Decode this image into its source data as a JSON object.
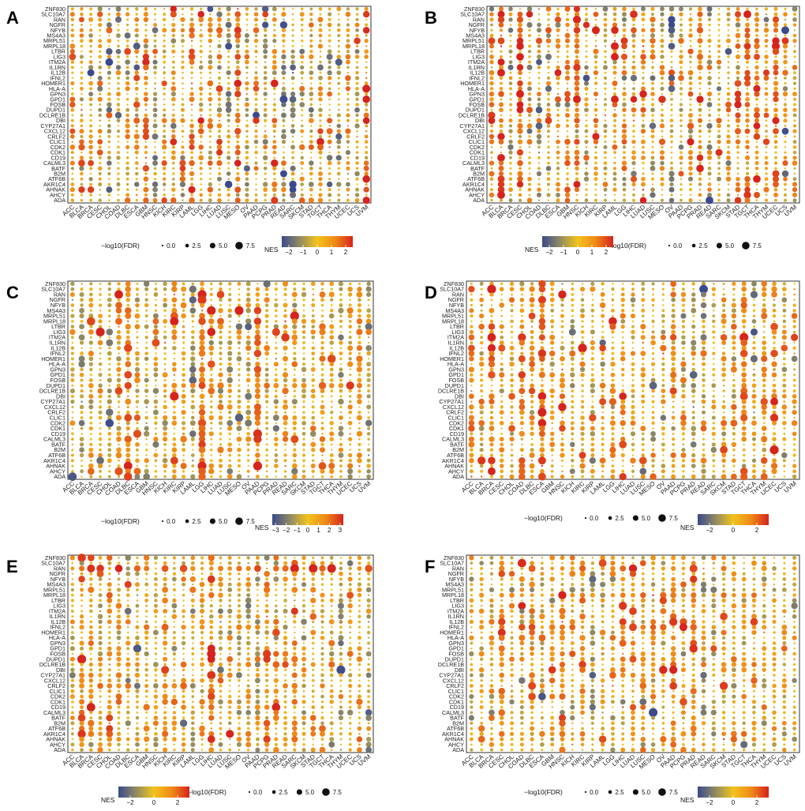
{
  "figure": {
    "fdr_legend_title": "−log10(FDR)",
    "fdr_legend_values": [
      "0.0",
      "2.5",
      "5.0",
      "7.5"
    ],
    "nes_legend_title": "NES",
    "colors": {
      "low": "#3b4a8c",
      "mid_low": "#8f8a63",
      "mid": "#f2c31c",
      "mid_high": "#f08a17",
      "high": "#d6231c",
      "frame": "#333333"
    }
  },
  "chart_data": [
    {
      "panel": "A",
      "type": "scatter",
      "style": "dot-plot",
      "genes": [
        "ZNF830",
        "SLC10A7",
        "RAN",
        "NGFR",
        "NFYB",
        "MS4A3",
        "MRPL51",
        "MRPL18",
        "LTBR",
        "LIG3",
        "ITM2A",
        "IL1RN",
        "IL12B",
        "IFNL2",
        "HOMER1",
        "HLA-A",
        "GPN3",
        "GPD1",
        "FOSB",
        "DUPD1",
        "DCLRE1B",
        "DBI",
        "CYP27A1",
        "CXCL12",
        "CRLF2",
        "CLIC1",
        "CDK2",
        "CDK1",
        "CD19",
        "CALML3",
        "BATF",
        "B2M",
        "ATF6B",
        "AKR1C4",
        "AHNAK",
        "AHCY",
        "ADA"
      ],
      "cancers": [
        "ACC",
        "BLCA",
        "BRCA",
        "CESC",
        "CHOL",
        "COAD",
        "DLBC",
        "ESCA",
        "GBM",
        "HNSC",
        "KICH",
        "KIRC",
        "KIRP",
        "LAML",
        "LGG",
        "LIHC",
        "LUAD",
        "LUSC",
        "MESO",
        "OV",
        "PAAD",
        "PCPG",
        "PRAD",
        "READ",
        "SARC",
        "SKCM",
        "STAD",
        "TGCT",
        "THCA",
        "THYM",
        "UCEC",
        "UCS",
        "UVM"
      ],
      "size_variable": "−log10(FDR)",
      "color_variable": "NES",
      "nes_range": [
        -2.5,
        2.5
      ],
      "nes_ticks": [
        "−2",
        "−1",
        "0",
        "1",
        "2"
      ],
      "seed": 11
    },
    {
      "panel": "B",
      "type": "scatter",
      "style": "dot-plot",
      "genes": [
        "ZNF830",
        "SLC10A7",
        "RAN",
        "NGFR",
        "NFYB",
        "MS4A3",
        "MRPL51",
        "MRPL18",
        "LTBR",
        "LIG3",
        "ITM2A",
        "IL1RN",
        "IL12B",
        "IFNL2",
        "HOMER1",
        "HLA-A",
        "GPN3",
        "GPD1",
        "FOSB",
        "DUPD1",
        "DCLRE1B",
        "DBI",
        "CYP27A1",
        "CXCL12",
        "CRLF2",
        "CLIC1",
        "CDK2",
        "CDK1",
        "CD19",
        "CALML3",
        "BATF",
        "B2M",
        "ATF6B",
        "AKR1C4",
        "AHNAK",
        "AHCY",
        "ADA"
      ],
      "cancers": [
        "ACC",
        "BLCA",
        "BRCA",
        "CESC",
        "CHOL",
        "COAD",
        "DLBC",
        "ESCA",
        "GBM",
        "HNSC",
        "KICH",
        "KIRC",
        "KIRP",
        "LAML",
        "LGG",
        "LIHC",
        "LUAD",
        "LUSC",
        "MESO",
        "OV",
        "PAAD",
        "PCPG",
        "PRAD",
        "READ",
        "SARC",
        "SKCM",
        "STAD",
        "TGCT",
        "THCA",
        "THYM",
        "UCEC",
        "UCS",
        "UVM"
      ],
      "size_variable": "−log10(FDR)",
      "color_variable": "NES",
      "nes_range": [
        -2.5,
        2.5
      ],
      "nes_ticks": [
        "−2",
        "−1",
        "0",
        "1",
        "2"
      ],
      "seed": 23
    },
    {
      "panel": "C",
      "type": "scatter",
      "style": "dot-plot",
      "genes": [
        "ZNF830",
        "SLC10A7",
        "RAN",
        "NGFR",
        "NFYB",
        "MS4A3",
        "MRPL51",
        "MRPL18",
        "LTBR",
        "LIG3",
        "ITM2A",
        "IL1RN",
        "IL12B",
        "IFNL2",
        "HOMER1",
        "HLA-A",
        "GPN3",
        "GPD1",
        "FOSB",
        "DUPD1",
        "DCLRE1B",
        "DBI",
        "CYP27A1",
        "CXCL12",
        "CRLF2",
        "CLIC1",
        "CDK2",
        "CDK1",
        "CD19",
        "CALML3",
        "BATF",
        "B2M",
        "ATF6B",
        "AKR1C4",
        "AHNAK",
        "AHCY",
        "ADA"
      ],
      "cancers": [
        "ACC",
        "BLCA",
        "BRCA",
        "CESC",
        "CHOL",
        "COAD",
        "DLBC",
        "ESCA",
        "GBM",
        "HNSC",
        "KICH",
        "KIRC",
        "KIRP",
        "LAML",
        "LGG",
        "LIHC",
        "LUAD",
        "LUSC",
        "MESO",
        "OV",
        "PAAD",
        "PCPG",
        "PRAD",
        "READ",
        "SARC",
        "SKCM",
        "STAD",
        "TGCT",
        "THCA",
        "THYM",
        "UCEC",
        "UCS",
        "UVM"
      ],
      "size_variable": "−log10(FDR)",
      "color_variable": "NES",
      "nes_range": [
        -3.3,
        3.3
      ],
      "nes_ticks": [
        "−3",
        "−2",
        "−1",
        "0",
        "1",
        "2",
        "3"
      ],
      "seed": 37
    },
    {
      "panel": "D",
      "type": "scatter",
      "style": "dot-plot",
      "genes": [
        "ZNF830",
        "SLC10A7",
        "RAN",
        "NGFR",
        "NFYB",
        "MS4A3",
        "MRPL51",
        "MRPL18",
        "LTBR",
        "LIG3",
        "ITM2A",
        "IL1RN",
        "IL12B",
        "IFNL2",
        "HOMER1",
        "HLA-A",
        "GPN3",
        "GPD1",
        "FOSB",
        "DUPD1",
        "DCLRE1B",
        "DBI",
        "CYP27A1",
        "CXCL12",
        "CRLF2",
        "CLIC1",
        "CDK2",
        "CDK1",
        "CD19",
        "CALML3",
        "BATF",
        "B2M",
        "ATF6B",
        "AKR1C4",
        "AHNAK",
        "AHCY",
        "ADA"
      ],
      "cancers": [
        "ACC",
        "BLCA",
        "BRCA",
        "CESC",
        "CHOL",
        "COAD",
        "DLBC",
        "ESCA",
        "GBM",
        "HNSC",
        "KICH",
        "KIRC",
        "KIRP",
        "LAML",
        "LGG",
        "LIHC",
        "LUAD",
        "LUSC",
        "MESO",
        "OV",
        "PAAD",
        "PCPG",
        "PRAD",
        "READ",
        "SARC",
        "SKCM",
        "STAD",
        "TGCT",
        "THCA",
        "THYM",
        "UCEC",
        "UCS",
        "UVM"
      ],
      "size_variable": "−log10(FDR)",
      "color_variable": "NES",
      "nes_range": [
        -3.0,
        3.0
      ],
      "nes_ticks": [
        "−2",
        "0",
        "2"
      ],
      "seed": 51
    },
    {
      "panel": "E",
      "type": "scatter",
      "style": "dot-plot",
      "genes": [
        "ZNF830",
        "SLC10A7",
        "RAN",
        "NGFR",
        "NFYB",
        "MS4A3",
        "MRPL51",
        "MRPL18",
        "LTBR",
        "LIG3",
        "ITM2A",
        "IL1RN",
        "IL12B",
        "IFNL2",
        "HOMER1",
        "HLA-A",
        "GPN3",
        "GPD1",
        "FOSB",
        "DUPD1",
        "DCLRE1B",
        "DBI",
        "CYP27A1",
        "CXCL12",
        "CRLF2",
        "CLIC1",
        "CDK2",
        "CDK1",
        "CD19",
        "CALML3",
        "BATF",
        "B2M",
        "ATF6B",
        "AKR1C4",
        "AHNAK",
        "AHCY",
        "ADA"
      ],
      "cancers": [
        "ACC",
        "BLCA",
        "BRCA",
        "CESC",
        "CHOL",
        "COAD",
        "DLBC",
        "ESCA",
        "GBM",
        "HNSC",
        "KICH",
        "KIRC",
        "KIRP",
        "LAML",
        "LGG",
        "LIHC",
        "LUAD",
        "LUSC",
        "MESO",
        "OV",
        "PAAD",
        "PCPG",
        "PRAD",
        "READ",
        "SARC",
        "SKCM",
        "STAD",
        "TGCT",
        "THCA",
        "THYM",
        "UCEC",
        "UCS",
        "UVM"
      ],
      "size_variable": "−log10(FDR)",
      "color_variable": "NES",
      "nes_range": [
        -3.0,
        3.0
      ],
      "nes_ticks": [
        "−2",
        "0",
        "2"
      ],
      "seed": 67
    },
    {
      "panel": "F",
      "type": "scatter",
      "style": "dot-plot",
      "genes": [
        "ZNF830",
        "SLC10A7",
        "RAN",
        "NGFR",
        "NFYB",
        "MS4A3",
        "MRPL51",
        "MRPL18",
        "LTBR",
        "LIG3",
        "ITM2A",
        "IL1RN",
        "IL12B",
        "IFNL2",
        "HOMER1",
        "HLA-A",
        "GPN3",
        "GPD1",
        "FOSB",
        "DUPD1",
        "DCLRE1B",
        "DBI",
        "CYP27A1",
        "CXCL12",
        "CRLF2",
        "CLIC1",
        "CDK2",
        "CDK1",
        "CD19",
        "CALML3",
        "BATF",
        "B2M",
        "ATF6B",
        "AKR1C4",
        "AHNAK",
        "AHCY",
        "ADA"
      ],
      "cancers": [
        "ACC",
        "BLCA",
        "BRCA",
        "CESC",
        "CHOL",
        "COAD",
        "DLBC",
        "ESCA",
        "GBM",
        "HNSC",
        "KICH",
        "KIRC",
        "KIRP",
        "LAML",
        "LGG",
        "LIHC",
        "LUAD",
        "LUSC",
        "MESO",
        "OV",
        "PAAD",
        "PCPG",
        "PRAD",
        "READ",
        "SARC",
        "SKCM",
        "STAD",
        "TGCT",
        "THCA",
        "THYM",
        "UCEC",
        "UCS",
        "UVM"
      ],
      "size_variable": "−log10(FDR)",
      "color_variable": "NES",
      "nes_range": [
        -3.0,
        3.0
      ],
      "nes_ticks": [
        "−2",
        "0",
        "2"
      ],
      "seed": 83
    }
  ]
}
